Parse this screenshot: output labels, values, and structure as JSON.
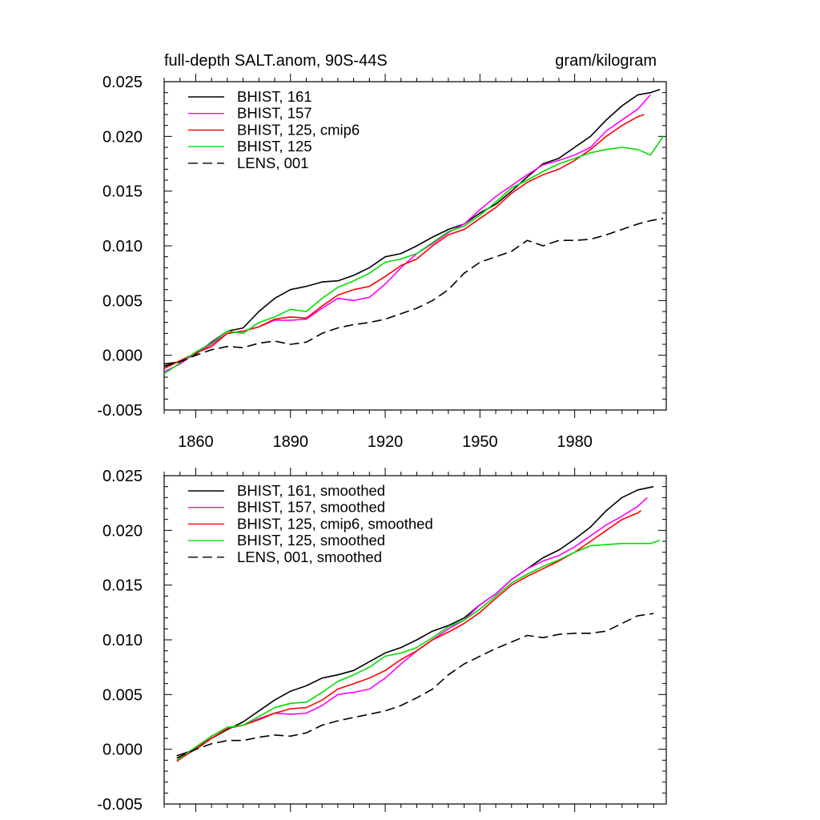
{
  "figure": {
    "title_left": "full-depth SALT.anom, 90S-44S",
    "title_right": "gram/kilogram"
  },
  "chart_data": [
    {
      "type": "line",
      "panel": "top",
      "ylim": [
        -0.005,
        0.025
      ],
      "xlim": [
        1850,
        2009
      ],
      "y_ticks": [
        -0.005,
        0.0,
        0.005,
        0.01,
        0.015,
        0.02,
        0.025
      ],
      "y_tick_labels": [
        "-0.005",
        "0.000",
        "0.005",
        "0.010",
        "0.015",
        "0.020",
        "0.025"
      ],
      "x_ticks": [
        1860,
        1890,
        1920,
        1950,
        1980
      ],
      "x_tick_labels": [
        "1860",
        "1890",
        "1920",
        "1950",
        "1980"
      ],
      "legend_position": "top-left",
      "series": [
        {
          "name": "BHIST, 161",
          "color": "#000000",
          "dash": "solid",
          "x": [
            1850,
            1855,
            1860,
            1865,
            1870,
            1875,
            1880,
            1885,
            1890,
            1895,
            1900,
            1905,
            1910,
            1915,
            1920,
            1925,
            1930,
            1935,
            1940,
            1945,
            1950,
            1955,
            1960,
            1965,
            1970,
            1975,
            1980,
            1985,
            1990,
            1995,
            2000,
            2004,
            2007
          ],
          "y": [
            -0.0008,
            -0.0006,
            0.0001,
            0.0012,
            0.0022,
            0.0025,
            0.004,
            0.0052,
            0.006,
            0.0063,
            0.0067,
            0.0068,
            0.0073,
            0.008,
            0.009,
            0.0093,
            0.01,
            0.0108,
            0.0115,
            0.012,
            0.013,
            0.0138,
            0.015,
            0.0163,
            0.0175,
            0.018,
            0.019,
            0.02,
            0.0215,
            0.0228,
            0.0238,
            0.024,
            0.0243
          ]
        },
        {
          "name": "BHIST, 157",
          "color": "#ff00ff",
          "dash": "solid",
          "x": [
            1850,
            1855,
            1860,
            1865,
            1870,
            1875,
            1880,
            1885,
            1890,
            1895,
            1900,
            1905,
            1910,
            1915,
            1920,
            1925,
            1930,
            1935,
            1940,
            1945,
            1950,
            1955,
            1960,
            1965,
            1970,
            1975,
            1980,
            1985,
            1990,
            1995,
            2000,
            2004
          ],
          "y": [
            -0.0015,
            -0.0008,
            0.0002,
            0.001,
            0.002,
            0.0022,
            0.0026,
            0.0032,
            0.0032,
            0.0033,
            0.0043,
            0.0052,
            0.005,
            0.0053,
            0.0065,
            0.008,
            0.0093,
            0.0102,
            0.0112,
            0.012,
            0.0133,
            0.0145,
            0.0155,
            0.0165,
            0.0174,
            0.0178,
            0.0183,
            0.019,
            0.0205,
            0.0215,
            0.0225,
            0.0238
          ]
        },
        {
          "name": "BHIST, 125, cmip6",
          "color": "#ff0000",
          "dash": "solid",
          "x": [
            1850,
            1855,
            1860,
            1865,
            1870,
            1875,
            1880,
            1885,
            1890,
            1895,
            1900,
            1905,
            1910,
            1915,
            1920,
            1925,
            1930,
            1935,
            1940,
            1945,
            1950,
            1955,
            1960,
            1965,
            1970,
            1975,
            1980,
            1985,
            1990,
            1995,
            2000,
            2002
          ],
          "y": [
            -0.0012,
            -0.0005,
            0.0002,
            0.0008,
            0.002,
            0.0022,
            0.0026,
            0.0033,
            0.0035,
            0.0034,
            0.0045,
            0.0055,
            0.006,
            0.0063,
            0.0072,
            0.0082,
            0.0088,
            0.01,
            0.011,
            0.0115,
            0.0125,
            0.0135,
            0.0148,
            0.0158,
            0.0165,
            0.017,
            0.0178,
            0.0188,
            0.02,
            0.021,
            0.0218,
            0.022
          ]
        },
        {
          "name": "BHIST, 125",
          "color": "#00dd00",
          "dash": "solid",
          "x": [
            1850,
            1855,
            1860,
            1865,
            1870,
            1875,
            1880,
            1885,
            1890,
            1895,
            1900,
            1905,
            1910,
            1915,
            1920,
            1925,
            1930,
            1935,
            1940,
            1945,
            1950,
            1955,
            1960,
            1965,
            1970,
            1975,
            1980,
            1985,
            1990,
            1995,
            2000,
            2004,
            2008
          ],
          "y": [
            -0.0017,
            -0.0007,
            0.0003,
            0.0011,
            0.0022,
            0.002,
            0.003,
            0.0035,
            0.0042,
            0.004,
            0.0052,
            0.0062,
            0.0068,
            0.0075,
            0.0085,
            0.0088,
            0.0093,
            0.0103,
            0.0113,
            0.0118,
            0.0128,
            0.014,
            0.0153,
            0.016,
            0.0168,
            0.0175,
            0.018,
            0.0185,
            0.0188,
            0.019,
            0.0188,
            0.0183,
            0.02
          ]
        },
        {
          "name": "LENS, 001",
          "color": "#000000",
          "dash": "dashed",
          "x": [
            1850,
            1855,
            1860,
            1865,
            1870,
            1875,
            1880,
            1885,
            1890,
            1895,
            1900,
            1905,
            1910,
            1915,
            1920,
            1925,
            1930,
            1935,
            1940,
            1945,
            1950,
            1955,
            1960,
            1965,
            1970,
            1975,
            1980,
            1985,
            1990,
            1995,
            2000,
            2004,
            2008
          ],
          "y": [
            -0.001,
            -0.0006,
            0.0,
            0.0005,
            0.0008,
            0.0007,
            0.0011,
            0.0013,
            0.001,
            0.0012,
            0.002,
            0.0025,
            0.0028,
            0.003,
            0.0033,
            0.0038,
            0.0043,
            0.005,
            0.006,
            0.0075,
            0.0085,
            0.009,
            0.0095,
            0.0105,
            0.01,
            0.0105,
            0.0105,
            0.0106,
            0.011,
            0.0115,
            0.012,
            0.0123,
            0.0125
          ]
        }
      ]
    },
    {
      "type": "line",
      "panel": "bottom",
      "ylim": [
        -0.005,
        0.025
      ],
      "xlim": [
        1850,
        2009
      ],
      "y_ticks": [
        -0.005,
        0.0,
        0.005,
        0.01,
        0.015,
        0.02,
        0.025
      ],
      "y_tick_labels": [
        "-0.005",
        "0.000",
        "0.005",
        "0.010",
        "0.015",
        "0.020",
        "0.025"
      ],
      "x_ticks": [
        1860,
        1890,
        1920,
        1950,
        1980
      ],
      "legend_position": "top-left",
      "series": [
        {
          "name": "BHIST, 161, smoothed",
          "color": "#000000",
          "dash": "solid",
          "x": [
            1854,
            1860,
            1865,
            1870,
            1875,
            1880,
            1885,
            1890,
            1895,
            1900,
            1905,
            1910,
            1915,
            1920,
            1925,
            1930,
            1935,
            1940,
            1945,
            1950,
            1955,
            1960,
            1965,
            1970,
            1975,
            1980,
            1985,
            1990,
            1995,
            2000,
            2005
          ],
          "y": [
            -0.0006,
            0.0,
            0.001,
            0.0018,
            0.0025,
            0.0035,
            0.0045,
            0.0053,
            0.0058,
            0.0065,
            0.0068,
            0.0072,
            0.008,
            0.0088,
            0.0093,
            0.01,
            0.0108,
            0.0113,
            0.012,
            0.0132,
            0.0142,
            0.0155,
            0.0165,
            0.0175,
            0.0182,
            0.0192,
            0.0203,
            0.0218,
            0.023,
            0.0237,
            0.024
          ]
        },
        {
          "name": "BHIST, 157, smoothed",
          "color": "#ff00ff",
          "dash": "solid",
          "x": [
            1854,
            1860,
            1865,
            1870,
            1875,
            1880,
            1885,
            1890,
            1895,
            1900,
            1905,
            1910,
            1915,
            1920,
            1925,
            1930,
            1935,
            1940,
            1945,
            1950,
            1955,
            1960,
            1965,
            1970,
            1975,
            1980,
            1985,
            1990,
            1995,
            2000,
            2003
          ],
          "y": [
            -0.001,
            0.0,
            0.0012,
            0.002,
            0.0022,
            0.0028,
            0.0033,
            0.0032,
            0.0033,
            0.004,
            0.005,
            0.0052,
            0.0055,
            0.0065,
            0.0078,
            0.009,
            0.01,
            0.011,
            0.0118,
            0.0132,
            0.0142,
            0.0155,
            0.0165,
            0.0172,
            0.0177,
            0.0185,
            0.0195,
            0.0205,
            0.0213,
            0.0222,
            0.023
          ]
        },
        {
          "name": "BHIST, 125, cmip6, smoothed",
          "color": "#ff0000",
          "dash": "solid",
          "x": [
            1854,
            1860,
            1865,
            1870,
            1875,
            1880,
            1885,
            1890,
            1895,
            1900,
            1905,
            1910,
            1915,
            1920,
            1925,
            1930,
            1935,
            1940,
            1945,
            1950,
            1955,
            1960,
            1965,
            1970,
            1975,
            1980,
            1985,
            1990,
            1995,
            2000,
            2001
          ],
          "y": [
            -0.0011,
            0.0001,
            0.001,
            0.0019,
            0.0022,
            0.0027,
            0.0033,
            0.0037,
            0.0038,
            0.0045,
            0.0055,
            0.006,
            0.0065,
            0.0072,
            0.0082,
            0.009,
            0.01,
            0.0107,
            0.0115,
            0.0125,
            0.0138,
            0.015,
            0.0158,
            0.0165,
            0.0172,
            0.018,
            0.019,
            0.02,
            0.021,
            0.0216,
            0.0218
          ]
        },
        {
          "name": "BHIST, 125, smoothed",
          "color": "#00dd00",
          "dash": "solid",
          "x": [
            1854,
            1860,
            1865,
            1870,
            1875,
            1880,
            1885,
            1890,
            1895,
            1900,
            1905,
            1910,
            1915,
            1920,
            1925,
            1930,
            1935,
            1940,
            1945,
            1950,
            1955,
            1960,
            1965,
            1970,
            1975,
            1980,
            1985,
            1990,
            1995,
            2000,
            2004,
            2007
          ],
          "y": [
            -0.001,
            0.0002,
            0.0012,
            0.002,
            0.0022,
            0.003,
            0.0038,
            0.0042,
            0.0043,
            0.0052,
            0.0062,
            0.0068,
            0.0075,
            0.0085,
            0.0088,
            0.0093,
            0.0102,
            0.0112,
            0.0118,
            0.0128,
            0.014,
            0.0152,
            0.016,
            0.0167,
            0.0173,
            0.018,
            0.0186,
            0.0187,
            0.0188,
            0.0188,
            0.0188,
            0.0191
          ]
        },
        {
          "name": "LENS, 001, smoothed",
          "color": "#000000",
          "dash": "dashed",
          "x": [
            1854,
            1860,
            1865,
            1870,
            1875,
            1880,
            1885,
            1890,
            1895,
            1900,
            1905,
            1910,
            1915,
            1920,
            1925,
            1930,
            1935,
            1940,
            1945,
            1950,
            1955,
            1960,
            1965,
            1970,
            1975,
            1980,
            1985,
            1990,
            1995,
            2000,
            2005
          ],
          "y": [
            -0.0008,
            0.0,
            0.0005,
            0.0008,
            0.0008,
            0.0011,
            0.0013,
            0.0012,
            0.0015,
            0.0022,
            0.0026,
            0.0029,
            0.0032,
            0.0035,
            0.004,
            0.0047,
            0.0055,
            0.0068,
            0.0078,
            0.0085,
            0.0092,
            0.0098,
            0.0104,
            0.0102,
            0.0105,
            0.0106,
            0.0106,
            0.0108,
            0.0115,
            0.0122,
            0.0124
          ]
        }
      ]
    }
  ]
}
